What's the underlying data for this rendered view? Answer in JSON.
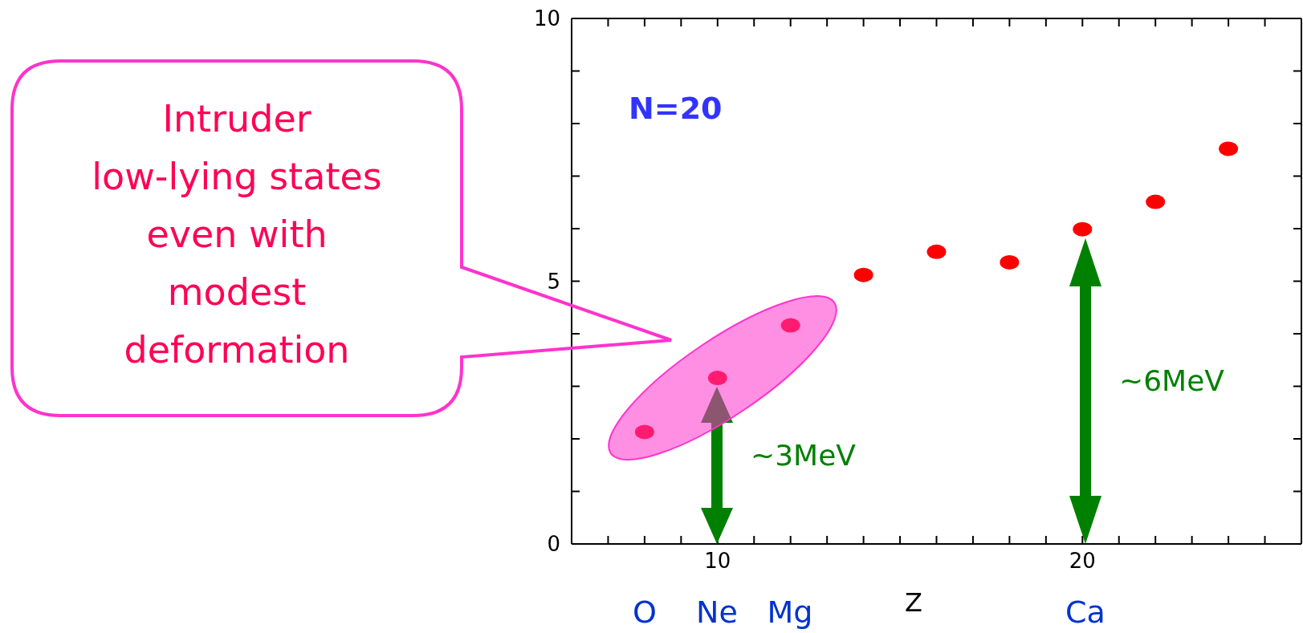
{
  "chart_data": {
    "type": "scatter",
    "xlabel": "Z",
    "x": [
      8,
      10,
      12,
      14,
      16,
      18,
      20,
      22,
      24
    ],
    "series": [
      {
        "color": "#ff0000",
        "values": [
          2.13,
          3.16,
          4.16,
          5.12,
          5.56,
          5.36,
          5.99,
          6.51,
          7.52
        ]
      }
    ],
    "marker": "circle",
    "xlim": [
      6,
      26
    ],
    "xticks": [
      {
        "value": 7,
        "label": null
      },
      {
        "value": 8,
        "label": null
      },
      {
        "value": 9,
        "label": null
      },
      10,
      {
        "value": 11,
        "label": null
      },
      {
        "value": 12,
        "label": null
      },
      {
        "value": 13,
        "label": null
      },
      {
        "value": 14,
        "label": null
      },
      {
        "value": 15,
        "label": null
      },
      {
        "value": 16,
        "label": null
      },
      {
        "value": 17,
        "label": null
      },
      {
        "value": 18,
        "label": null
      },
      {
        "value": 19,
        "label": null
      },
      20,
      {
        "value": 21,
        "label": null
      },
      {
        "value": 22,
        "label": null
      },
      {
        "value": 23,
        "label": null
      },
      {
        "value": 24,
        "label": null
      },
      {
        "value": 25,
        "label": null
      }
    ],
    "ylim": [
      0,
      10
    ],
    "yticks": [
      0,
      {
        "value": 1,
        "label": null
      },
      {
        "value": 2,
        "label": null
      },
      {
        "value": 3,
        "label": null
      },
      {
        "value": 4,
        "label": null
      },
      5,
      {
        "value": 6,
        "label": null
      },
      {
        "value": 7,
        "label": null
      },
      {
        "value": 8,
        "label": null
      },
      {
        "value": 9,
        "label": null
      },
      10
    ],
    "annotations": [
      "N=20",
      "Intruder\nlow-lying states\neven with\nmodest\ndeformation",
      "~3MeV",
      "~6MeV",
      "O",
      "Ne",
      "Mg",
      "Ca"
    ]
  }
}
